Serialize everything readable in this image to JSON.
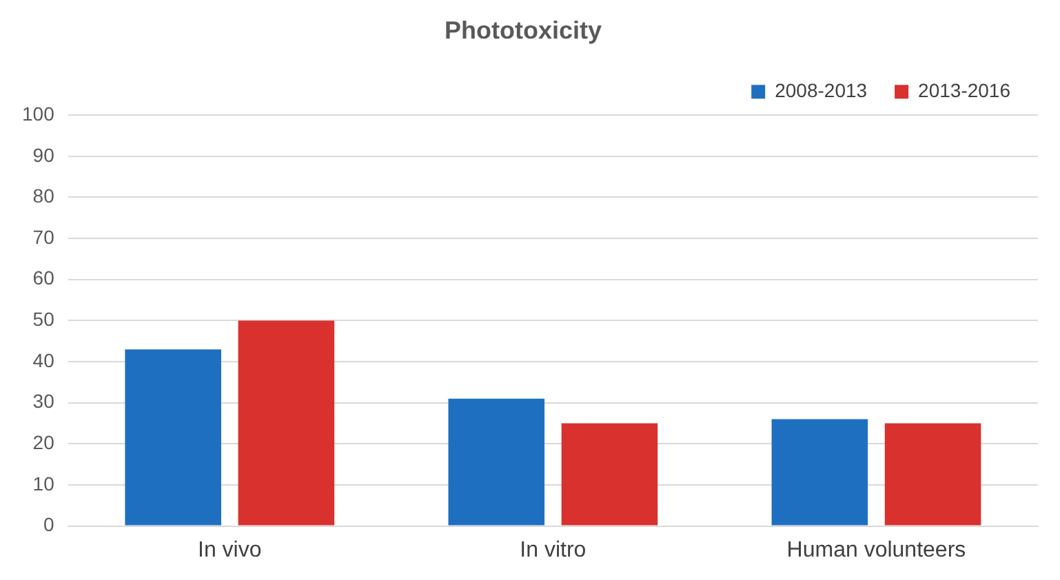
{
  "chart_data": {
    "type": "bar",
    "title": "Phototoxicity",
    "categories": [
      "In vivo",
      "In vitro",
      "Human volunteers"
    ],
    "series": [
      {
        "name": "2008-2013",
        "color": "#1f6fc0",
        "values": [
          43,
          31,
          26
        ]
      },
      {
        "name": "2013-2016",
        "color": "#d8312e",
        "values": [
          50,
          25,
          25
        ]
      }
    ],
    "ylim": [
      0,
      100
    ],
    "yticks": [
      0,
      10,
      20,
      30,
      40,
      50,
      60,
      70,
      80,
      90,
      100
    ],
    "grid": "y",
    "legend": "top right"
  }
}
